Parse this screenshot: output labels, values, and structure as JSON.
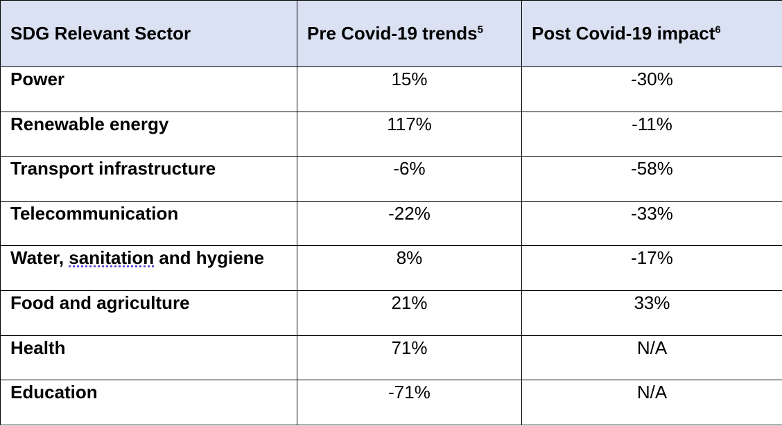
{
  "table": {
    "header": {
      "sector": "SDG Relevant Sector",
      "pre": "Pre Covid-19 trends",
      "pre_sup": "5",
      "post": "Post Covid-19 impact",
      "post_sup": "6"
    },
    "header_bg": "#d9e1f2",
    "spellcheck_color": "#5a3fcf",
    "rows": [
      {
        "sector": "Power",
        "pre": "15%",
        "post": "-30%"
      },
      {
        "sector": "Renewable energy",
        "pre": "117%",
        "post": "-11%"
      },
      {
        "sector": "Transport infrastructure",
        "pre": "-6%",
        "post": "-58%"
      },
      {
        "sector": "Telecommunication",
        "pre": "-22%",
        "post": "-33%"
      },
      {
        "sector": "Water, sanitation and hygiene",
        "sector_parts": [
          "Water, ",
          "sanitation",
          " and hygiene"
        ],
        "pre": "8%",
        "post": "-17%"
      },
      {
        "sector": "Food and agriculture",
        "pre": "21%",
        "post": "33%"
      },
      {
        "sector": "Health",
        "pre": "71%",
        "post": "N/A"
      },
      {
        "sector": "Education",
        "pre": "-71%",
        "post": "N/A"
      }
    ]
  }
}
